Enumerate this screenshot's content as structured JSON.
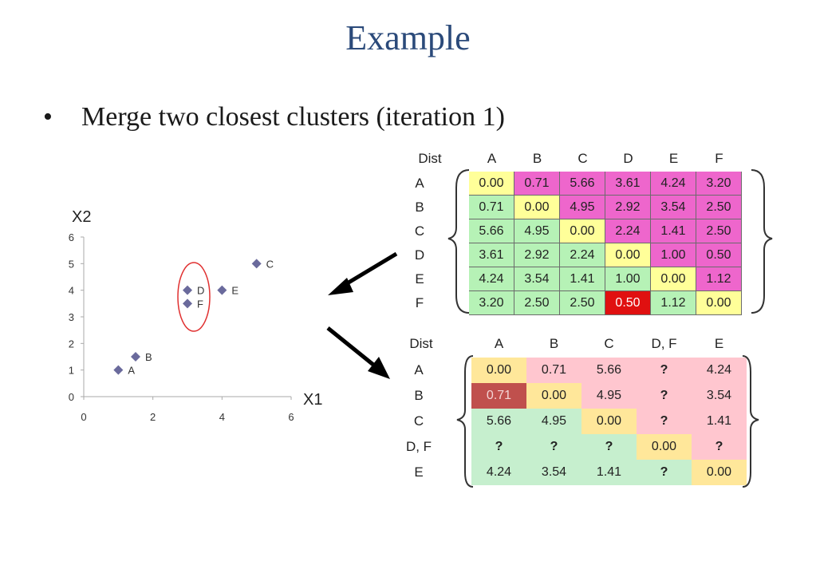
{
  "title": "Example",
  "bullet": {
    "symbol": "•",
    "text": "Merge two closest clusters (iteration 1)"
  },
  "chart_data": {
    "type": "scatter",
    "xlabel": "X1",
    "ylabel": "X2",
    "xlim": [
      0,
      6
    ],
    "ylim": [
      0,
      6
    ],
    "xticks": [
      "0",
      "2",
      "4",
      "6"
    ],
    "yticks": [
      "0",
      "1",
      "2",
      "3",
      "4",
      "5",
      "6"
    ],
    "points": [
      {
        "label": "A",
        "x": 1,
        "y": 1
      },
      {
        "label": "B",
        "x": 1.5,
        "y": 1.5
      },
      {
        "label": "C",
        "x": 5,
        "y": 5
      },
      {
        "label": "D",
        "x": 3,
        "y": 4
      },
      {
        "label": "E",
        "x": 4,
        "y": 4
      },
      {
        "label": "F",
        "x": 3,
        "y": 3.5
      }
    ],
    "marker_color": "#6a6a9c",
    "highlight": {
      "labels": [
        "D",
        "F"
      ],
      "color": "#e03030"
    }
  },
  "table1": {
    "corner": "Dist",
    "headers": [
      "A",
      "B",
      "C",
      "D",
      "E",
      "F"
    ],
    "rows": [
      {
        "label": "A",
        "cells": [
          "0.00",
          "0.71",
          "5.66",
          "3.61",
          "4.24",
          "3.20"
        ],
        "colors": [
          "y",
          "p",
          "p",
          "p",
          "p",
          "p"
        ]
      },
      {
        "label": "B",
        "cells": [
          "0.71",
          "0.00",
          "4.95",
          "2.92",
          "3.54",
          "2.50"
        ],
        "colors": [
          "g",
          "y",
          "p",
          "p",
          "p",
          "p"
        ]
      },
      {
        "label": "C",
        "cells": [
          "5.66",
          "4.95",
          "0.00",
          "2.24",
          "1.41",
          "2.50"
        ],
        "colors": [
          "g",
          "g",
          "y",
          "p",
          "p",
          "p"
        ]
      },
      {
        "label": "D",
        "cells": [
          "3.61",
          "2.92",
          "2.24",
          "0.00",
          "1.00",
          "0.50"
        ],
        "colors": [
          "g",
          "g",
          "g",
          "y",
          "p",
          "p"
        ]
      },
      {
        "label": "E",
        "cells": [
          "4.24",
          "3.54",
          "1.41",
          "1.00",
          "0.00",
          "1.12"
        ],
        "colors": [
          "g",
          "g",
          "g",
          "g",
          "y",
          "p"
        ]
      },
      {
        "label": "F",
        "cells": [
          "3.20",
          "2.50",
          "2.50",
          "0.50",
          "1.12",
          "0.00"
        ],
        "colors": [
          "g",
          "g",
          "g",
          "r",
          "g",
          "y"
        ]
      }
    ]
  },
  "table2": {
    "corner": "Dist",
    "headers": [
      "A",
      "B",
      "C",
      "D, F",
      "E"
    ],
    "rows": [
      {
        "label": "A",
        "cells": [
          "0.00",
          "0.71",
          "5.66",
          "?",
          "4.24"
        ],
        "colors": [
          "y",
          "p",
          "p",
          "p",
          "p"
        ]
      },
      {
        "label": "B",
        "cells": [
          "0.71",
          "0.00",
          "4.95",
          "?",
          "3.54"
        ],
        "colors": [
          "r",
          "y",
          "p",
          "p",
          "p"
        ]
      },
      {
        "label": "C",
        "cells": [
          "5.66",
          "4.95",
          "0.00",
          "?",
          "1.41"
        ],
        "colors": [
          "g",
          "g",
          "y",
          "p",
          "p"
        ]
      },
      {
        "label": "D, F",
        "cells": [
          "?",
          "?",
          "?",
          "0.00",
          "?"
        ],
        "colors": [
          "g",
          "g",
          "g",
          "y",
          "p"
        ]
      },
      {
        "label": "E",
        "cells": [
          "4.24",
          "3.54",
          "1.41",
          "?",
          "0.00"
        ],
        "colors": [
          "g",
          "g",
          "g",
          "g",
          "y"
        ]
      }
    ]
  },
  "colors": {
    "t1": {
      "y": "#ffff99",
      "p": "#ee66cc",
      "g": "#b6f2b6",
      "r": "#e01010"
    },
    "t2": {
      "y": "#ffe79a",
      "p": "#ffc6cf",
      "g": "#c6efce",
      "r": "#c0504d"
    }
  }
}
